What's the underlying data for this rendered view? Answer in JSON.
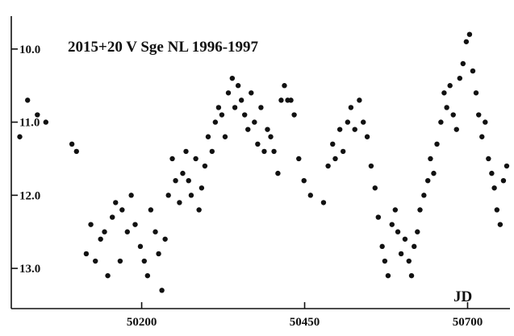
{
  "chart_data": {
    "type": "scatter",
    "title": "2015+20  V Sge  NL  1996-1997",
    "xlabel": "JD",
    "ylabel": "",
    "xlim": [
      50000,
      50765
    ],
    "ylim": [
      13.55,
      9.55
    ],
    "y_inverted": true,
    "x_ticks": [
      50200,
      50450,
      50700
    ],
    "y_ticks": [
      10.0,
      11.0,
      12.0,
      13.0
    ],
    "y_tick_labels": [
      "10.0",
      "11.0",
      "12.0",
      "13.0"
    ],
    "grid": false,
    "legend": "none",
    "marker_color": "#111111",
    "series": [
      {
        "x": [
          50013,
          50025,
          50040,
          50053,
          50093,
          50100,
          50115,
          50122,
          50129,
          50137,
          50143,
          50148,
          50155,
          50160,
          50167,
          50170,
          50178,
          50184,
          50190,
          50198,
          50204,
          50209,
          50214,
          50221,
          50226,
          50231,
          50236,
          50241,
          50247,
          50252,
          50258,
          50263,
          50268,
          50272,
          50276,
          50283,
          50288,
          50292,
          50297,
          50302,
          50308,
          50313,
          50318,
          50323,
          50328,
          50333,
          50339,
          50343,
          50348,
          50353,
          50358,
          50363,
          50368,
          50373,
          50378,
          50383,
          50388,
          50393,
          50398,
          50403,
          50409,
          50414,
          50419,
          50424,
          50429,
          50434,
          50441,
          50449,
          50459,
          50479,
          50486,
          50493,
          50497,
          50504,
          50509,
          50516,
          50521,
          50527,
          50534,
          50540,
          50546,
          50552,
          50558,
          50563,
          50569,
          50573,
          50578,
          50584,
          50589,
          50593,
          50598,
          50604,
          50610,
          50614,
          50618,
          50623,
          50627,
          50633,
          50639,
          50643,
          50648,
          50653,
          50659,
          50664,
          50668,
          50673,
          50678,
          50683,
          50688,
          50693,
          50698,
          50703,
          50708,
          50713,
          50717,
          50722,
          50727,
          50732,
          50737,
          50741,
          50745,
          50750,
          50755,
          50760
        ],
        "y": [
          11.2,
          10.7,
          10.9,
          11.0,
          11.3,
          11.4,
          12.8,
          12.4,
          12.9,
          12.6,
          12.5,
          13.1,
          12.3,
          12.1,
          12.9,
          12.2,
          12.5,
          12.0,
          12.4,
          12.7,
          12.9,
          13.1,
          12.2,
          12.5,
          12.8,
          13.3,
          12.6,
          12.0,
          11.5,
          11.8,
          12.1,
          11.7,
          11.4,
          11.8,
          12.0,
          11.5,
          12.2,
          11.9,
          11.6,
          11.2,
          11.4,
          11.0,
          10.8,
          10.9,
          11.2,
          10.6,
          10.4,
          10.8,
          10.5,
          10.7,
          10.9,
          11.1,
          10.6,
          11.0,
          11.3,
          10.8,
          11.4,
          11.1,
          11.2,
          11.4,
          11.7,
          10.7,
          10.5,
          10.7,
          10.7,
          10.9,
          11.5,
          11.8,
          12.0,
          12.1,
          11.6,
          11.3,
          11.5,
          11.1,
          11.4,
          11.0,
          10.8,
          11.1,
          10.7,
          11.0,
          11.2,
          11.6,
          11.9,
          12.3,
          12.7,
          12.9,
          13.1,
          12.4,
          12.2,
          12.5,
          12.8,
          12.6,
          12.9,
          13.1,
          12.7,
          12.5,
          12.2,
          12.0,
          11.8,
          11.5,
          11.7,
          11.3,
          11.0,
          10.6,
          10.8,
          10.5,
          10.9,
          11.1,
          10.4,
          10.2,
          9.9,
          9.8,
          10.3,
          10.6,
          10.9,
          11.2,
          11.0,
          11.5,
          11.7,
          11.9,
          12.2,
          12.4,
          11.8,
          11.6
        ]
      }
    ]
  }
}
